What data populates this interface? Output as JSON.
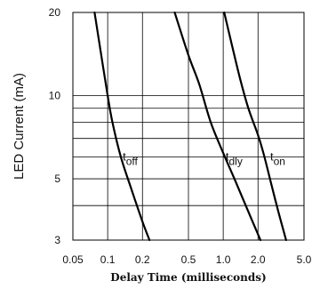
{
  "chart_data": {
    "type": "line",
    "title": "",
    "xlabel": "Delay Time (milliseconds)",
    "ylabel": "LED Current (mA)",
    "x_scale": "log",
    "y_scale": "log",
    "xlim": [
      0.05,
      5.0
    ],
    "ylim": [
      3,
      20
    ],
    "grid": true,
    "x_ticks": [
      "0.05",
      "0.1",
      "0.2",
      "0.5",
      "1.0",
      "2.0",
      "5.0"
    ],
    "y_ticks": [
      "3",
      "5",
      "10",
      "20"
    ],
    "series": [
      {
        "name_main": "t",
        "name_sub": "off",
        "points": [
          [
            0.077,
            20
          ],
          [
            0.088,
            14
          ],
          [
            0.1,
            10
          ],
          [
            0.11,
            8
          ],
          [
            0.13,
            6
          ],
          [
            0.16,
            4.6
          ],
          [
            0.2,
            3.5
          ],
          [
            0.23,
            3
          ]
        ]
      },
      {
        "name_main": "t",
        "name_sub": "dly",
        "points": [
          [
            0.38,
            20
          ],
          [
            0.5,
            14
          ],
          [
            0.62,
            11
          ],
          [
            0.78,
            8
          ],
          [
            1.0,
            6.2
          ],
          [
            1.25,
            5
          ],
          [
            1.65,
            3.8
          ],
          [
            2.1,
            3
          ]
        ]
      },
      {
        "name_main": "t",
        "name_sub": "on",
        "points": [
          [
            1.02,
            20
          ],
          [
            1.2,
            15
          ],
          [
            1.4,
            11.5
          ],
          [
            1.65,
            9
          ],
          [
            2.0,
            7.2
          ],
          [
            2.25,
            6.1
          ],
          [
            2.6,
            4.8
          ],
          [
            3.0,
            3.8
          ],
          [
            3.5,
            3
          ]
        ]
      }
    ]
  }
}
